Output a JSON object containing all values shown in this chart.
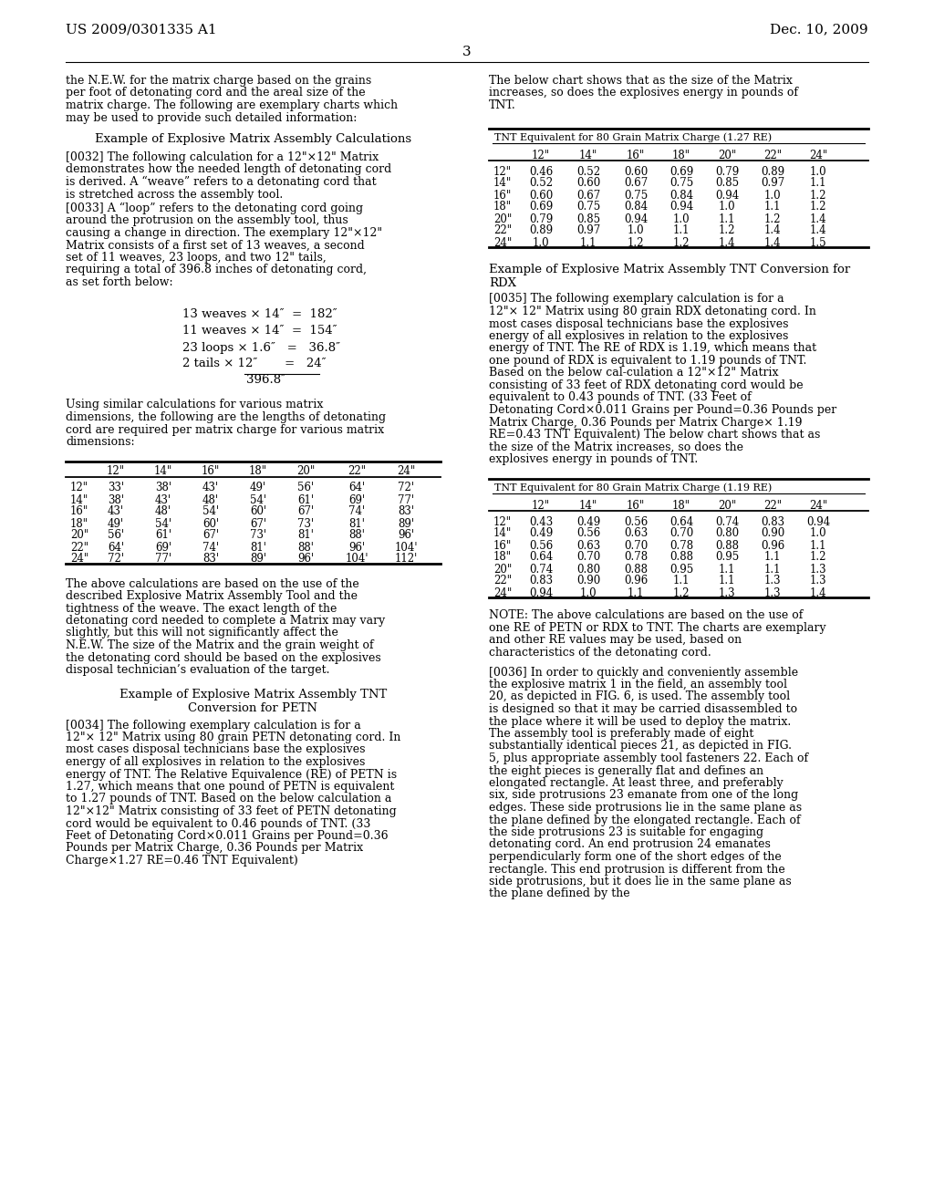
{
  "bg_color": "#ffffff",
  "header_left": "US 2009/0301335 A1",
  "header_right": "Dec. 10, 2009",
  "page_number": "3",
  "left_col": {
    "intro_text": "the N.E.W. for the matrix charge based on the grains per foot of detonating cord and the areal size of the matrix charge. The following are exemplary charts which may be used to provide such detailed information:",
    "section1_title": "Example of Explosive Matrix Assembly Calculations",
    "para0032": "[0032]    The following calculation for a 12\"×12\" Matrix demonstrates how the needed length of detonating cord is derived. A “weave” refers to a detonating cord that is stretched across the assembly tool.",
    "para0033": "[0033]    A “loop” refers to the detonating cord going around the protrusion on the assembly tool, thus causing a change in direction. The exemplary 12\"×12\" Matrix consists of a first set of 13 weaves, a second set of 11 weaves, 23 loops, and two 12\" tails, requiring a total of 396.8 inches of detonating cord, as set forth below:",
    "calc_lines": [
      {
        "text": "13 weaves × 14″  =  182″"
      },
      {
        "text": "11 weaves × 14″  =  154″"
      },
      {
        "text": "23 loops × 1.6″   =   36.8″"
      },
      {
        "text": "2 tails × 12″       =   24″"
      },
      {
        "text": "396.8″",
        "underline": true
      }
    ],
    "para_after_calc": "Using similar calculations for various matrix dimensions, the following are the lengths of detonating cord are required per matrix charge for various matrix dimensions:",
    "table1_cols": [
      "",
      "12\"",
      "14\"",
      "16\"",
      "18\"",
      "20\"",
      "22\"",
      "24\""
    ],
    "table1_rows": [
      [
        "12\"",
        "33'",
        "38'",
        "43'",
        "49'",
        "56'",
        "64'",
        "72'"
      ],
      [
        "14\"",
        "38'",
        "43'",
        "48'",
        "54'",
        "61'",
        "69'",
        "77'"
      ],
      [
        "16\"",
        "43'",
        "48'",
        "54'",
        "60'",
        "67'",
        "74'",
        "83'"
      ],
      [
        "18\"",
        "49'",
        "54'",
        "60'",
        "67'",
        "73'",
        "81'",
        "89'"
      ],
      [
        "20\"",
        "56'",
        "61'",
        "67'",
        "73'",
        "81'",
        "88'",
        "96'"
      ],
      [
        "22\"",
        "64'",
        "69'",
        "74'",
        "81'",
        "88'",
        "96'",
        "104'"
      ],
      [
        "24\"",
        "72'",
        "77'",
        "83'",
        "89'",
        "96'",
        "104'",
        "112'"
      ]
    ],
    "para_after_table1": "The above calculations are based on the use of the described Explosive Matrix Assembly Tool and the tightness of the weave. The exact length of the detonating cord needed to complete a Matrix may vary slightly, but this will not significantly affect the N.E.W. The size of the Matrix and the grain weight of the detonating cord should be based on the explosives disposal technician’s evaluation of the target.",
    "section2_title_1": "Example of Explosive Matrix Assembly TNT",
    "section2_title_2": "Conversion for PETN",
    "para0034": "[0034]    The following exemplary calculation is for a 12\"× 12\" Matrix using 80 grain PETN detonating cord. In most cases disposal technicians base the explosives energy of all explosives in relation to the explosives energy of TNT. The Relative Equivalence (RE) of PETN is 1.27, which means that one pound of PETN is equivalent to 1.27 pounds of TNT. Based on the below calculation a 12\"×12\" Matrix consisting of 33 feet of PETN detonating cord would be equivalent to 0.46 pounds of TNT. (33 Feet of Detonating Cord×0.011 Grains per Pound=0.36 Pounds per Matrix Charge, 0.36 Pounds per Matrix Charge×1.27 RE=0.46 TNT Equivalent)"
  },
  "right_col": {
    "intro_text": "The below chart shows that as the size of the Matrix increases, so does the explosives energy in pounds of TNT.",
    "table2_title": "TNT Equivalent for 80 Grain Matrix Charge (1.27 RE)",
    "table2_cols": [
      "",
      "12\"",
      "14\"",
      "16\"",
      "18\"",
      "20\"",
      "22\"",
      "24\""
    ],
    "table2_rows": [
      [
        "12\"",
        "0.46",
        "0.52",
        "0.60",
        "0.69",
        "0.79",
        "0.89",
        "1.0"
      ],
      [
        "14\"",
        "0.52",
        "0.60",
        "0.67",
        "0.75",
        "0.85",
        "0.97",
        "1.1"
      ],
      [
        "16\"",
        "0.60",
        "0.67",
        "0.75",
        "0.84",
        "0.94",
        "1.0",
        "1.2"
      ],
      [
        "18\"",
        "0.69",
        "0.75",
        "0.84",
        "0.94",
        "1.0",
        "1.1",
        "1.2"
      ],
      [
        "20\"",
        "0.79",
        "0.85",
        "0.94",
        "1.0",
        "1.1",
        "1.2",
        "1.4"
      ],
      [
        "22\"",
        "0.89",
        "0.97",
        "1.0",
        "1.1",
        "1.2",
        "1.4",
        "1.4"
      ],
      [
        "24\"",
        "1.0",
        "1.1",
        "1.2",
        "1.2",
        "1.4",
        "1.4",
        "1.5"
      ]
    ],
    "section3_title_1": "Example of Explosive Matrix Assembly TNT Conversion for",
    "section3_title_2": "RDX",
    "para0035": "[0035]    The following exemplary calculation is for a 12\"× 12\" Matrix using 80 grain RDX detonating cord. In most cases disposal technicians base the explosives energy of all explosives in relation to the explosives energy of TNT. The RE of RDX is 1.19, which means that one pound of RDX is equivalent to 1.19 pounds of TNT. Based on the below cal­culation a 12\"×12\" Matrix consisting of 33 feet of RDX detonating cord would be equivalent to 0.43 pounds of TNT. (33 Feet of Detonating Cord×0.011 Grains per Pound=0.36 Pounds per Matrix Charge, 0.36 Pounds per Matrix Charge× 1.19 RE=0.43 TNT Equivalent) The below chart shows that as the size of the Matrix increases, so does the explosives energy in pounds of TNT.",
    "table3_title": "TNT Equivalent for 80 Grain Matrix Charge (1.19 RE)",
    "table3_cols": [
      "",
      "12\"",
      "14\"",
      "16\"",
      "18\"",
      "20\"",
      "22\"",
      "24\""
    ],
    "table3_rows": [
      [
        "12\"",
        "0.43",
        "0.49",
        "0.56",
        "0.64",
        "0.74",
        "0.83",
        "0.94"
      ],
      [
        "14\"",
        "0.49",
        "0.56",
        "0.63",
        "0.70",
        "0.80",
        "0.90",
        "1.0"
      ],
      [
        "16\"",
        "0.56",
        "0.63",
        "0.70",
        "0.78",
        "0.88",
        "0.96",
        "1.1"
      ],
      [
        "18\"",
        "0.64",
        "0.70",
        "0.78",
        "0.88",
        "0.95",
        "1.1",
        "1.2"
      ],
      [
        "20\"",
        "0.74",
        "0.80",
        "0.88",
        "0.95",
        "1.1",
        "1.1",
        "1.3"
      ],
      [
        "22\"",
        "0.83",
        "0.90",
        "0.96",
        "1.1",
        "1.1",
        "1.3",
        "1.3"
      ],
      [
        "24\"",
        "0.94",
        "1.0",
        "1.1",
        "1.2",
        "1.3",
        "1.3",
        "1.4"
      ]
    ],
    "note_text": "NOTE: The above calculations are based on the use of one RE of PETN or RDX to TNT. The charts are exemplary and other RE values may be used, based on characteristics of the detonating cord.",
    "para0036": "[0036]    In order to quickly and conveniently assemble the explosive matrix 1 in the field, an assembly tool 20, as depicted in FIG. 6, is used. The assembly tool is designed so that it may be carried disassembled to the place where it will be used to deploy the matrix. The assembly tool is preferably made of eight substantially identical pieces 21, as depicted in FIG. 5, plus appropriate assembly tool fasteners 22. Each of the eight pieces is generally flat and defines an elongated rectangle. At least three, and preferably six, side protrusions 23 emanate from one of the long edges. These side protrusions lie in the same plane as the plane defined by the elongated rectangle. Each of the side protrusions 23 is suitable for engaging detonating cord. An end protrusion 24 emanates perpendicularly form one of the short edges of the rectangle. This end protrusion is different from the side protrusions, but it does lie in the same plane as the plane defined by the"
  }
}
